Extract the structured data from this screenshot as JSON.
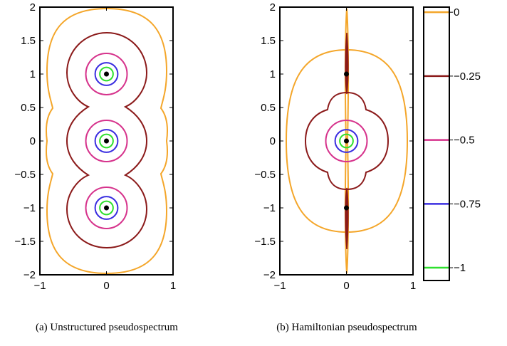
{
  "colors": {
    "level_0": "#f4a62a",
    "level_m025": "#8b1a1a",
    "level_m05": "#d6338c",
    "level_m075": "#3a2ee0",
    "level_m1": "#2ee02e",
    "eigenvalue": "#000000",
    "axes": "#000000"
  },
  "chart_data": [
    {
      "type": "contour",
      "caption": "(a)  Unstructured pseudospectrum",
      "title": "",
      "xlabel": "",
      "ylabel": "",
      "xlim": [
        -1,
        1
      ],
      "ylim": [
        -2,
        2
      ],
      "x_ticks": [
        -1,
        0,
        1
      ],
      "x_tick_labels": [
        "−1",
        "0",
        "1"
      ],
      "y_ticks": [
        -2,
        -1.5,
        -1,
        -0.5,
        0,
        0.5,
        1,
        1.5,
        2
      ],
      "y_tick_labels": [
        "−2",
        "−1.5",
        "−1",
        "−0.5",
        "0",
        "0.5",
        "1",
        "1.5",
        "2"
      ],
      "grid": false,
      "eigenvalues": [
        [
          0,
          1
        ],
        [
          0,
          0
        ],
        [
          0,
          -1
        ]
      ],
      "contour_radii": {
        "-0.25": 0.56,
        "-0.5": 0.31,
        "-0.75": 0.17,
        "-1": 0.1
      },
      "contour_levels": [
        0,
        -0.25,
        -0.5,
        -0.75,
        -1
      ]
    },
    {
      "type": "contour",
      "caption": "(b)  Hamiltonian pseudospectrum",
      "title": "",
      "xlabel": "",
      "ylabel": "",
      "xlim": [
        -1,
        1
      ],
      "ylim": [
        -2,
        2
      ],
      "x_ticks": [
        -1,
        0,
        1
      ],
      "x_tick_labels": [
        "−1",
        "0",
        "1"
      ],
      "y_ticks": [
        -2,
        -1.5,
        -1,
        -0.5,
        0,
        0.5,
        1,
        1.5,
        2
      ],
      "y_tick_labels": [
        "−2",
        "−1.5",
        "−1",
        "−0.5",
        "0",
        "0.5",
        "1",
        "1.5",
        "2"
      ],
      "grid": false,
      "eigenvalues": [
        [
          0,
          1
        ],
        [
          0,
          0
        ],
        [
          0,
          -1
        ]
      ],
      "contour_radii": {
        "-0.5": 0.31,
        "-0.75": 0.17,
        "-1": 0.1
      },
      "contour_levels": [
        0,
        -0.25,
        -0.5,
        -0.75,
        -1
      ]
    }
  ],
  "colorbar": {
    "levels": [
      0,
      -0.25,
      -0.5,
      -0.75,
      -1
    ],
    "labels": [
      "0",
      "−0.25",
      "−0.5",
      "−0.75",
      "−1"
    ],
    "range": [
      -1.05,
      0.02
    ]
  }
}
